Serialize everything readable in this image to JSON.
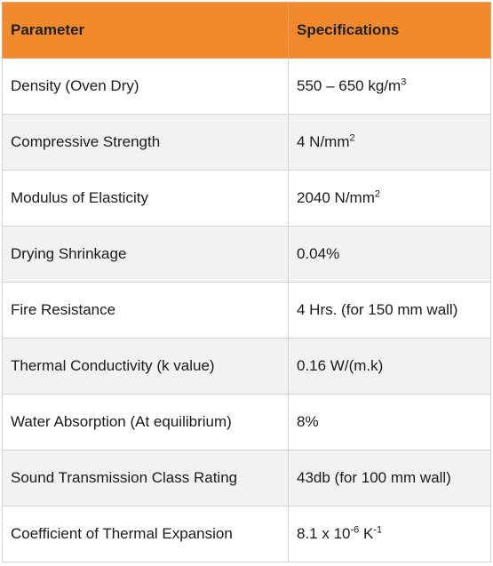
{
  "header": {
    "parameter": "Parameter",
    "specifications": "Specifications"
  },
  "rows": [
    {
      "parameter": "Density (Oven Dry)",
      "value": "550 – 650 kg/m",
      "sup": "3",
      "suffix": ""
    },
    {
      "parameter": "Compressive Strength",
      "value": "4 N/mm",
      "sup": "2",
      "suffix": ""
    },
    {
      "parameter": "Modulus of Elasticity",
      "value": "2040 N/mm",
      "sup": "2",
      "suffix": ""
    },
    {
      "parameter": "Drying Shrinkage",
      "value": "0.04%",
      "sup": "",
      "suffix": ""
    },
    {
      "parameter": "Fire Resistance",
      "value": "4 Hrs. (for 150 mm wall)",
      "sup": "",
      "suffix": ""
    },
    {
      "parameter": "Thermal Conductivity (k value)",
      "value": "0.16 W/(m.k)",
      "sup": "",
      "suffix": ""
    },
    {
      "parameter": "Water Absorption (At equilibrium)",
      "value": "8%",
      "sup": "",
      "suffix": ""
    },
    {
      "parameter": "Sound Transmission Class Rating",
      "value": "43db (for 100 mm wall)",
      "sup": "",
      "suffix": ""
    },
    {
      "parameter": "Coefficient of Thermal Expansion",
      "value": "8.1 x 10",
      "sup": "-6",
      "suffix": " K",
      "sup2": "-1"
    }
  ],
  "colors": {
    "header_bg": "#f18a2c",
    "row_alt_bg": "#f2f2f2",
    "border": "#d3d3d3"
  }
}
